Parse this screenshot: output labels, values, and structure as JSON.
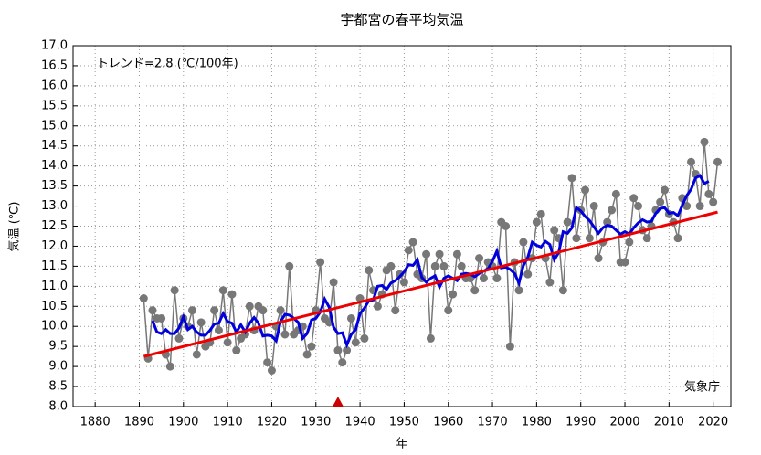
{
  "chart_data": {
    "type": "line",
    "title": "宇都宮の春平均気温",
    "x_label": "年",
    "y_label": "気温 (℃)",
    "annotations": [
      "トレンド=2.8 (℃/100年)",
      "気象庁"
    ],
    "x": [
      1891,
      1892,
      1893,
      1894,
      1895,
      1896,
      1897,
      1898,
      1899,
      1900,
      1901,
      1902,
      1903,
      1904,
      1905,
      1906,
      1907,
      1908,
      1909,
      1910,
      1911,
      1912,
      1913,
      1914,
      1915,
      1916,
      1917,
      1918,
      1919,
      1920,
      1921,
      1922,
      1923,
      1924,
      1925,
      1926,
      1927,
      1928,
      1929,
      1930,
      1931,
      1932,
      1933,
      1934,
      1935,
      1936,
      1937,
      1938,
      1939,
      1940,
      1941,
      1942,
      1943,
      1944,
      1945,
      1946,
      1947,
      1948,
      1949,
      1950,
      1951,
      1952,
      1953,
      1954,
      1955,
      1956,
      1957,
      1958,
      1959,
      1960,
      1961,
      1962,
      1963,
      1964,
      1965,
      1966,
      1967,
      1968,
      1969,
      1970,
      1971,
      1972,
      1973,
      1974,
      1975,
      1976,
      1977,
      1978,
      1979,
      1980,
      1981,
      1982,
      1983,
      1984,
      1985,
      1986,
      1987,
      1988,
      1989,
      1990,
      1991,
      1992,
      1993,
      1994,
      1995,
      1996,
      1997,
      1998,
      1999,
      2000,
      2001,
      2002,
      2003,
      2004,
      2005,
      2006,
      2007,
      2008,
      2009,
      2010,
      2011,
      2012,
      2013,
      2014,
      2015,
      2016,
      2017,
      2018,
      2019,
      2020,
      2021
    ],
    "series": [
      {
        "color": "#777777",
        "marker": "circle",
        "values": [
          10.7,
          9.2,
          10.4,
          10.2,
          10.2,
          9.3,
          9.0,
          10.9,
          9.7,
          10.2,
          10.0,
          10.4,
          9.3,
          10.1,
          9.5,
          9.6,
          10.4,
          9.9,
          10.9,
          9.6,
          10.8,
          9.4,
          9.7,
          9.8,
          10.5,
          9.9,
          10.5,
          10.4,
          9.1,
          8.9,
          10.0,
          10.4,
          9.8,
          11.5,
          9.8,
          9.9,
          10.0,
          9.3,
          9.5,
          10.4,
          11.6,
          10.2,
          10.1,
          11.1,
          9.4,
          9.1,
          9.4,
          10.2,
          9.6,
          10.7,
          9.7,
          11.4,
          10.9,
          10.5,
          10.8,
          11.4,
          11.5,
          10.4,
          11.3,
          11.1,
          11.9,
          12.1,
          11.3,
          11.2,
          11.8,
          9.7,
          11.5,
          11.8,
          11.5,
          10.4,
          10.8,
          11.8,
          11.5,
          11.2,
          11.2,
          10.9,
          11.7,
          11.2,
          11.6,
          11.5,
          11.2,
          12.6,
          12.5,
          9.5,
          11.6,
          10.9,
          12.1,
          11.3,
          11.7,
          12.6,
          12.8,
          11.7,
          11.1,
          12.4,
          12.2,
          10.9,
          12.6,
          13.7,
          12.2,
          12.9,
          13.4,
          12.2,
          13.0,
          11.7,
          12.1,
          12.6,
          12.9,
          13.3,
          11.6,
          11.6,
          12.1,
          13.2,
          13.0,
          12.4,
          12.2,
          12.5,
          12.9,
          13.1,
          13.4,
          12.8,
          12.6,
          12.2,
          13.2,
          13.0,
          14.1,
          13.8,
          13.0,
          14.6,
          13.3,
          13.1,
          14.1
        ]
      },
      {
        "color": "#0000dd",
        "values": [
          null,
          null,
          10.14,
          9.86,
          9.82,
          9.92,
          9.82,
          9.82,
          9.96,
          10.24,
          9.92,
          10.0,
          9.86,
          9.78,
          9.78,
          9.9,
          10.06,
          10.08,
          10.32,
          10.12,
          10.08,
          9.86,
          10.04,
          9.86,
          10.08,
          10.22,
          10.08,
          9.76,
          9.78,
          9.76,
          9.64,
          10.12,
          10.3,
          10.28,
          10.2,
          10.1,
          9.7,
          9.82,
          10.16,
          10.2,
          10.36,
          10.68,
          10.48,
          9.98,
          9.82,
          9.84,
          9.54,
          9.8,
          9.92,
          10.32,
          10.46,
          10.64,
          10.66,
          11.0,
          11.02,
          10.92,
          11.08,
          11.14,
          11.24,
          11.36,
          11.54,
          11.52,
          11.66,
          11.22,
          11.1,
          11.2,
          11.26,
          10.98,
          11.2,
          11.26,
          11.2,
          11.14,
          11.3,
          11.32,
          11.3,
          11.24,
          11.32,
          11.38,
          11.44,
          11.62,
          11.88,
          11.46,
          11.48,
          11.42,
          11.32,
          11.08,
          11.52,
          11.72,
          12.1,
          12.02,
          11.98,
          12.12,
          12.04,
          11.66,
          11.84,
          12.36,
          12.32,
          12.46,
          12.96,
          12.88,
          12.74,
          12.64,
          12.48,
          12.32,
          12.46,
          12.52,
          12.5,
          12.4,
          12.3,
          12.36,
          12.3,
          12.46,
          12.58,
          12.66,
          12.6,
          12.62,
          12.82,
          12.94,
          12.96,
          12.82,
          12.84,
          12.76,
          13.02,
          13.26,
          13.42,
          13.7,
          13.76,
          13.56,
          13.62,
          null,
          null
        ]
      }
    ],
    "trend": {
      "color": "#ee0000",
      "x": [
        1891,
        2021
      ],
      "values": [
        9.25,
        12.85
      ]
    },
    "markers": [
      {
        "x": 1935,
        "color": "#cc0000"
      }
    ],
    "xlim": [
      1875,
      2024
    ],
    "xticks": [
      1880,
      1890,
      1900,
      1910,
      1920,
      1930,
      1940,
      1950,
      1960,
      1970,
      1980,
      1990,
      2000,
      2010,
      2020
    ],
    "ylim": [
      8,
      17
    ],
    "yticks": [
      {
        "value": 8,
        "label": "8.0"
      },
      8.5,
      {
        "value": 9,
        "label": "9.0"
      },
      9.5,
      {
        "value": 10,
        "label": "10.0"
      },
      10.5,
      {
        "value": 11,
        "label": "11.0"
      },
      11.5,
      {
        "value": 12,
        "label": "12.0"
      },
      12.5,
      {
        "value": 13,
        "label": "13.0"
      },
      13.5,
      {
        "value": 14,
        "label": "14.0"
      },
      14.5,
      {
        "value": 15,
        "label": "15.0"
      },
      15.5,
      {
        "value": 16,
        "label": "16.0"
      },
      16.5,
      {
        "value": 17,
        "label": "17.0"
      }
    ],
    "grid": true
  }
}
